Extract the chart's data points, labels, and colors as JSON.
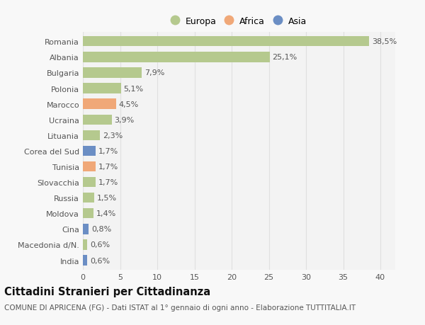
{
  "categories": [
    "Romania",
    "Albania",
    "Bulgaria",
    "Polonia",
    "Marocco",
    "Ucraina",
    "Lituania",
    "Corea del Sud",
    "Tunisia",
    "Slovacchia",
    "Russia",
    "Moldova",
    "Cina",
    "Macedonia d/N.",
    "India"
  ],
  "values": [
    38.5,
    25.1,
    7.9,
    5.1,
    4.5,
    3.9,
    2.3,
    1.7,
    1.7,
    1.7,
    1.5,
    1.4,
    0.8,
    0.6,
    0.6
  ],
  "continents": [
    "Europa",
    "Europa",
    "Europa",
    "Europa",
    "Africa",
    "Europa",
    "Europa",
    "Asia",
    "Africa",
    "Europa",
    "Europa",
    "Europa",
    "Asia",
    "Europa",
    "Asia"
  ],
  "colors": {
    "Europa": "#b5c98e",
    "Africa": "#f0a878",
    "Asia": "#6b8ec4"
  },
  "legend_entries": [
    "Europa",
    "Africa",
    "Asia"
  ],
  "legend_colors": [
    "#b5c98e",
    "#f0a878",
    "#6b8ec4"
  ],
  "title": "Cittadini Stranieri per Cittadinanza",
  "subtitle": "COMUNE DI APRICENA (FG) - Dati ISTAT al 1° gennaio di ogni anno - Elaborazione TUTTITALIA.IT",
  "xlim": [
    0,
    42
  ],
  "xticks": [
    0,
    5,
    10,
    15,
    20,
    25,
    30,
    35,
    40
  ],
  "background_color": "#f8f8f8",
  "plot_bg_color": "#f3f3f3",
  "grid_color": "#e0e0e0",
  "bar_height": 0.65,
  "label_fontsize": 8,
  "tick_fontsize": 8,
  "title_fontsize": 10.5,
  "subtitle_fontsize": 7.5
}
